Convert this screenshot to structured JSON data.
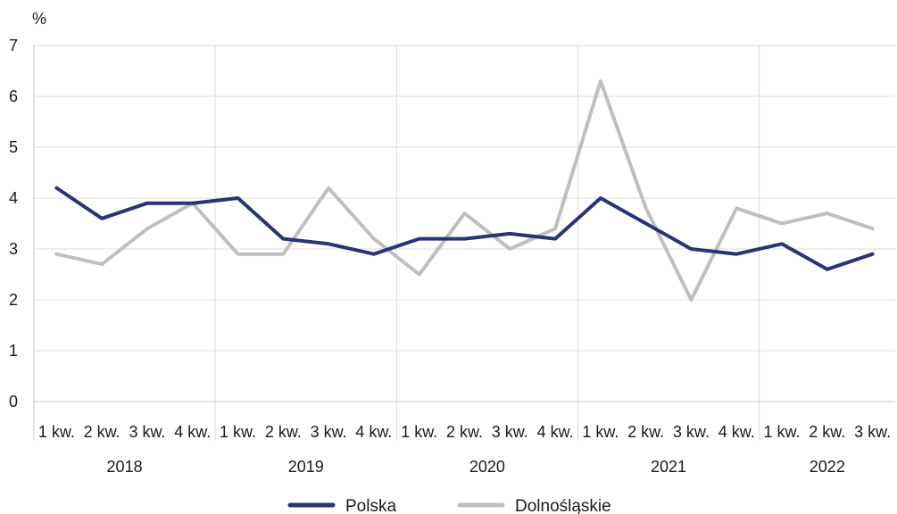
{
  "chart_data": {
    "type": "line",
    "ylabel": "%",
    "ylim": [
      0,
      7
    ],
    "yticks": [
      "0",
      "1",
      "2",
      "3",
      "4",
      "5",
      "6",
      "7"
    ],
    "grid": true,
    "legend_position": "bottom",
    "categories": [
      "1 kw.",
      "2 kw.",
      "3 kw.",
      "4 kw.",
      "1 kw.",
      "2 kw.",
      "3 kw.",
      "4 kw.",
      "1 kw.",
      "2 kw.",
      "3 kw.",
      "4 kw.",
      "1 kw.",
      "2 kw.",
      "3 kw.",
      "4 kw.",
      "1 kw.",
      "2 kw.",
      "3 kw."
    ],
    "years": [
      "2018",
      "2019",
      "2020",
      "2021",
      "2022"
    ],
    "series": [
      {
        "name": "Polska",
        "color": "#283474",
        "values": [
          4.2,
          3.6,
          3.9,
          3.9,
          4.0,
          3.2,
          3.1,
          2.9,
          3.2,
          3.2,
          3.3,
          3.2,
          4.0,
          3.5,
          3.0,
          2.9,
          3.1,
          2.6,
          2.9
        ]
      },
      {
        "name": "Dolnośląskie",
        "color": "#bfbfbf",
        "values": [
          2.9,
          2.7,
          3.4,
          3.9,
          2.9,
          2.9,
          4.2,
          3.2,
          2.5,
          3.7,
          3.0,
          3.4,
          6.3,
          3.8,
          2.0,
          3.8,
          3.5,
          3.7,
          3.4
        ]
      }
    ]
  }
}
